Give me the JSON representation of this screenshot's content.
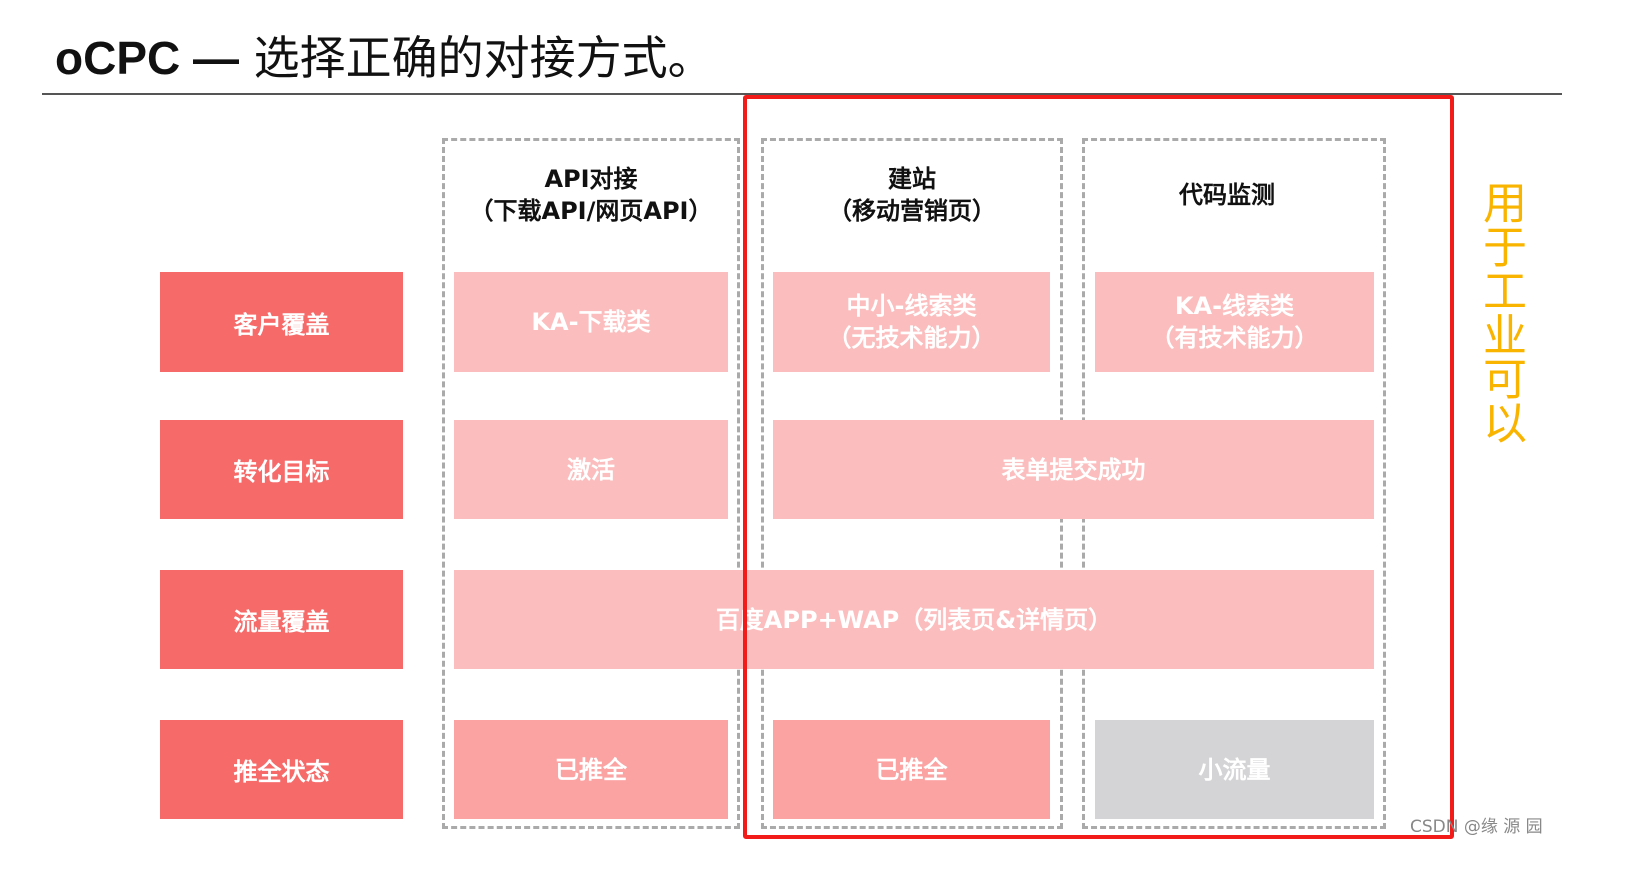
{
  "title": {
    "prefix": "oCPC —",
    "text": " 选择正确的对接方式。"
  },
  "columns": [
    {
      "line1": "API对接",
      "line2": "（下载API/网页API）"
    },
    {
      "line1": "建站",
      "line2": "（移动营销页）"
    },
    {
      "line1": "代码监测",
      "line2": ""
    }
  ],
  "rows": [
    "客户覆盖",
    "转化目标",
    "流量覆盖",
    "推全状态"
  ],
  "cells": {
    "coverage": [
      {
        "l1": "KA-下载类",
        "l2": ""
      },
      {
        "l1": "中小-线索类",
        "l2": "（无技术能力）"
      },
      {
        "l1": "KA-线索类",
        "l2": "（有技术能力）"
      }
    ],
    "goal": [
      "激活",
      "表单提交成功"
    ],
    "traffic": "百度APP+WAP（列表页&详情页）",
    "status": [
      "已推全",
      "已推全",
      "小流量"
    ]
  },
  "annotation": "用于工业可以",
  "watermark": "CSDN @缘 源 园",
  "colors": {
    "label": "#f66a6a",
    "cell": "#fbbdbd",
    "status": "#fba3a3",
    "gray": "#d4d3d5",
    "highlight": "#f31a1a",
    "annotation": "#f9b400"
  }
}
